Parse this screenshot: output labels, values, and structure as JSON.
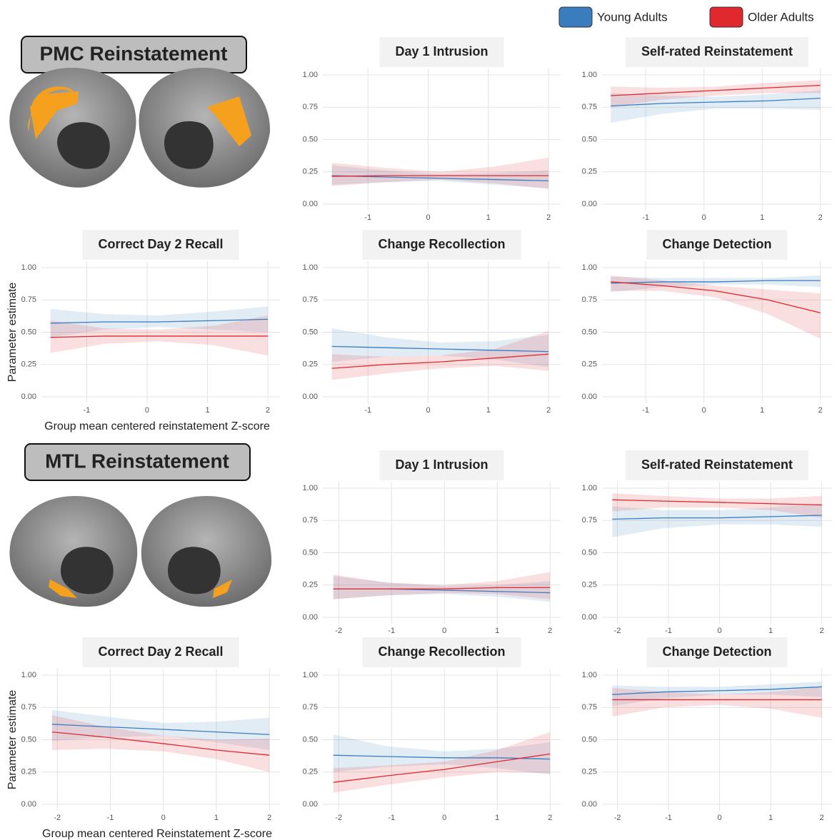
{
  "sections": [
    {
      "title": "PMC Reinstatement"
    },
    {
      "title": "MTL Reinstatement"
    }
  ],
  "chart_data": [
    {
      "type": "line",
      "title": "Day 1 Intrusion",
      "xlim": [
        -1.75,
        2.2
      ],
      "xticks": [
        -1,
        0,
        1,
        2
      ],
      "ylim": [
        -0.05,
        1.05
      ],
      "yticks": [
        {
          "value": 0,
          "label": "0.00"
        },
        {
          "value": 0.25,
          "label": "0.25"
        },
        {
          "value": 0.5,
          "label": "0.50"
        },
        {
          "value": 0.75,
          "label": "0.75"
        },
        {
          "value": 1,
          "label": "1.00"
        }
      ],
      "grid": true,
      "x": [
        -1.6,
        -0.7,
        0.2,
        1.1,
        2.0
      ],
      "series": [
        {
          "name": "Young Adults",
          "color": "#3a7dbf",
          "values": [
            0.22,
            0.21,
            0.2,
            0.19,
            0.18
          ],
          "lower": [
            0.15,
            0.17,
            0.18,
            0.15,
            0.12
          ],
          "upper": [
            0.3,
            0.26,
            0.23,
            0.24,
            0.26
          ]
        },
        {
          "name": "Older Adults",
          "color": "#e0282e",
          "values": [
            0.215,
            0.22,
            0.22,
            0.22,
            0.22
          ],
          "lower": [
            0.14,
            0.17,
            0.19,
            0.16,
            0.12
          ],
          "upper": [
            0.32,
            0.28,
            0.25,
            0.29,
            0.36
          ]
        }
      ]
    },
    {
      "type": "line",
      "title": "Self-rated Reinstatement",
      "xlim": [
        -1.75,
        2.2
      ],
      "xticks": [
        -1,
        0,
        1,
        2
      ],
      "ylim": [
        -0.05,
        1.05
      ],
      "yticks": [
        {
          "value": 0,
          "label": "0.00"
        },
        {
          "value": 0.25,
          "label": "0.25"
        },
        {
          "value": 0.5,
          "label": "0.50"
        },
        {
          "value": 0.75,
          "label": "0.75"
        },
        {
          "value": 1,
          "label": "1.00"
        }
      ],
      "grid": true,
      "x": [
        -1.6,
        -0.7,
        0.2,
        1.1,
        2.0
      ],
      "series": [
        {
          "name": "Young Adults",
          "color": "#3a7dbf",
          "values": [
            0.76,
            0.78,
            0.79,
            0.8,
            0.82
          ],
          "lower": [
            0.63,
            0.7,
            0.74,
            0.74,
            0.73
          ],
          "upper": [
            0.86,
            0.84,
            0.83,
            0.85,
            0.88
          ]
        },
        {
          "name": "Older Adults",
          "color": "#e0282e",
          "values": [
            0.84,
            0.86,
            0.88,
            0.9,
            0.92
          ],
          "lower": [
            0.75,
            0.81,
            0.84,
            0.86,
            0.86
          ],
          "upper": [
            0.91,
            0.9,
            0.91,
            0.94,
            0.96
          ]
        }
      ]
    },
    {
      "type": "line",
      "title": "Correct Day 2 Recall",
      "ylabel": "Parameter estimate",
      "xlabel": "Group mean centered reinstatement Z-score",
      "xlim": [
        -1.75,
        2.2
      ],
      "xticks": [
        -1,
        0,
        1,
        2
      ],
      "ylim": [
        -0.05,
        1.05
      ],
      "yticks": [
        {
          "value": 0,
          "label": "0.00"
        },
        {
          "value": 0.25,
          "label": "0.25"
        },
        {
          "value": 0.5,
          "label": "0.50"
        },
        {
          "value": 0.75,
          "label": "0.75"
        },
        {
          "value": 1,
          "label": "1.00"
        }
      ],
      "grid": true,
      "x": [
        -1.6,
        -0.7,
        0.2,
        1.1,
        2.0
      ],
      "series": [
        {
          "name": "Young Adults",
          "color": "#3a7dbf",
          "values": [
            0.57,
            0.58,
            0.58,
            0.59,
            0.6
          ],
          "lower": [
            0.46,
            0.52,
            0.54,
            0.52,
            0.5
          ],
          "upper": [
            0.68,
            0.64,
            0.63,
            0.66,
            0.7
          ]
        },
        {
          "name": "Older Adults",
          "color": "#e0282e",
          "values": [
            0.46,
            0.47,
            0.47,
            0.47,
            0.47
          ],
          "lower": [
            0.34,
            0.41,
            0.43,
            0.4,
            0.32
          ],
          "upper": [
            0.59,
            0.53,
            0.52,
            0.55,
            0.63
          ]
        }
      ]
    },
    {
      "type": "line",
      "title": "Change Recollection",
      "xlim": [
        -1.75,
        2.2
      ],
      "xticks": [
        -1,
        0,
        1,
        2
      ],
      "ylim": [
        -0.05,
        1.05
      ],
      "yticks": [
        {
          "value": 0,
          "label": "0.00"
        },
        {
          "value": 0.25,
          "label": "0.25"
        },
        {
          "value": 0.5,
          "label": "0.50"
        },
        {
          "value": 0.75,
          "label": "0.75"
        },
        {
          "value": 1,
          "label": "1.00"
        }
      ],
      "grid": true,
      "x": [
        -1.6,
        -0.7,
        0.2,
        1.1,
        2.0
      ],
      "series": [
        {
          "name": "Young Adults",
          "color": "#3a7dbf",
          "values": [
            0.39,
            0.38,
            0.37,
            0.36,
            0.35
          ],
          "lower": [
            0.27,
            0.31,
            0.32,
            0.29,
            0.23
          ],
          "upper": [
            0.53,
            0.46,
            0.42,
            0.43,
            0.48
          ]
        },
        {
          "name": "Older Adults",
          "color": "#e0282e",
          "values": [
            0.22,
            0.25,
            0.27,
            0.3,
            0.33
          ],
          "lower": [
            0.13,
            0.18,
            0.22,
            0.24,
            0.2
          ],
          "upper": [
            0.33,
            0.31,
            0.32,
            0.37,
            0.51
          ]
        }
      ]
    },
    {
      "type": "line",
      "title": "Change Detection",
      "xlim": [
        -1.75,
        2.2
      ],
      "xticks": [
        -1,
        0,
        1,
        2
      ],
      "ylim": [
        -0.05,
        1.05
      ],
      "yticks": [
        {
          "value": 0,
          "label": "0.00"
        },
        {
          "value": 0.25,
          "label": "0.25"
        },
        {
          "value": 0.5,
          "label": "0.50"
        },
        {
          "value": 0.75,
          "label": "0.75"
        },
        {
          "value": 1,
          "label": "1.00"
        }
      ],
      "grid": true,
      "x": [
        -1.6,
        -0.7,
        0.2,
        1.1,
        2.0
      ],
      "series": [
        {
          "name": "Young Adults",
          "color": "#3a7dbf",
          "values": [
            0.88,
            0.89,
            0.89,
            0.9,
            0.9
          ],
          "lower": [
            0.81,
            0.85,
            0.87,
            0.87,
            0.85
          ],
          "upper": [
            0.93,
            0.92,
            0.92,
            0.92,
            0.94
          ]
        },
        {
          "name": "Older Adults",
          "color": "#e0282e",
          "values": [
            0.89,
            0.86,
            0.82,
            0.75,
            0.65
          ],
          "lower": [
            0.82,
            0.82,
            0.77,
            0.64,
            0.45
          ],
          "upper": [
            0.94,
            0.9,
            0.86,
            0.83,
            0.8
          ]
        }
      ]
    },
    {
      "type": "line",
      "title": "Day 1 Intrusion",
      "xlim": [
        -2.3,
        2.2
      ],
      "xticks": [
        -2,
        -1,
        0,
        1,
        2
      ],
      "ylim": [
        -0.05,
        1.05
      ],
      "yticks": [
        {
          "value": 0,
          "label": "0.00"
        },
        {
          "value": 0.25,
          "label": "0.25"
        },
        {
          "value": 0.5,
          "label": "0.50"
        },
        {
          "value": 0.75,
          "label": "0.75"
        },
        {
          "value": 1,
          "label": "1.00"
        }
      ],
      "grid": true,
      "x": [
        -2.1,
        -1.1,
        0,
        1,
        2
      ],
      "series": [
        {
          "name": "Young Adults",
          "color": "#3a7dbf",
          "values": [
            0.22,
            0.22,
            0.21,
            0.2,
            0.19
          ],
          "lower": [
            0.14,
            0.17,
            0.18,
            0.16,
            0.12
          ],
          "upper": [
            0.32,
            0.27,
            0.24,
            0.25,
            0.28
          ]
        },
        {
          "name": "Older Adults",
          "color": "#e0282e",
          "values": [
            0.22,
            0.22,
            0.22,
            0.23,
            0.23
          ],
          "lower": [
            0.14,
            0.17,
            0.19,
            0.18,
            0.14
          ],
          "upper": [
            0.33,
            0.27,
            0.25,
            0.28,
            0.35
          ]
        }
      ]
    },
    {
      "type": "line",
      "title": "Self-rated Reinstatement",
      "xlim": [
        -2.3,
        2.2
      ],
      "xticks": [
        -2,
        -1,
        0,
        1,
        2
      ],
      "ylim": [
        -0.05,
        1.05
      ],
      "yticks": [
        {
          "value": 0,
          "label": "0.00"
        },
        {
          "value": 0.25,
          "label": "0.25"
        },
        {
          "value": 0.5,
          "label": "0.50"
        },
        {
          "value": 0.75,
          "label": "0.75"
        },
        {
          "value": 1,
          "label": "1.00"
        }
      ],
      "grid": true,
      "x": [
        -2.1,
        -1.1,
        0,
        1,
        2
      ],
      "series": [
        {
          "name": "Young Adults",
          "color": "#3a7dbf",
          "values": [
            0.76,
            0.77,
            0.77,
            0.78,
            0.79
          ],
          "lower": [
            0.62,
            0.69,
            0.72,
            0.72,
            0.7
          ],
          "upper": [
            0.86,
            0.83,
            0.83,
            0.85,
            0.88
          ]
        },
        {
          "name": "Older Adults",
          "color": "#e0282e",
          "values": [
            0.91,
            0.9,
            0.89,
            0.88,
            0.87
          ],
          "lower": [
            0.82,
            0.85,
            0.85,
            0.83,
            0.77
          ],
          "upper": [
            0.96,
            0.94,
            0.92,
            0.92,
            0.94
          ]
        }
      ]
    },
    {
      "type": "line",
      "title": "Correct Day 2 Recall",
      "ylabel": "Parameter estimate",
      "xlabel": "Group mean centered Reinstatement Z-score",
      "xlim": [
        -2.3,
        2.2
      ],
      "xticks": [
        -2,
        -1,
        0,
        1,
        2
      ],
      "ylim": [
        -0.05,
        1.05
      ],
      "yticks": [
        {
          "value": 0,
          "label": "0.00"
        },
        {
          "value": 0.25,
          "label": "0.25"
        },
        {
          "value": 0.5,
          "label": "0.50"
        },
        {
          "value": 0.75,
          "label": "0.75"
        },
        {
          "value": 1,
          "label": "1.00"
        }
      ],
      "grid": true,
      "x": [
        -2.1,
        -1.1,
        0,
        1,
        2
      ],
      "series": [
        {
          "name": "Young Adults",
          "color": "#3a7dbf",
          "values": [
            0.62,
            0.6,
            0.58,
            0.56,
            0.54
          ],
          "lower": [
            0.49,
            0.52,
            0.53,
            0.48,
            0.42
          ],
          "upper": [
            0.73,
            0.68,
            0.63,
            0.64,
            0.67
          ]
        },
        {
          "name": "Older Adults",
          "color": "#e0282e",
          "values": [
            0.56,
            0.52,
            0.47,
            0.42,
            0.38
          ],
          "lower": [
            0.42,
            0.43,
            0.41,
            0.35,
            0.25
          ],
          "upper": [
            0.69,
            0.6,
            0.53,
            0.5,
            0.51
          ]
        }
      ]
    },
    {
      "type": "line",
      "title": "Change Recollection",
      "xlim": [
        -2.3,
        2.2
      ],
      "xticks": [
        -2,
        -1,
        0,
        1,
        2
      ],
      "ylim": [
        -0.05,
        1.05
      ],
      "yticks": [
        {
          "value": 0,
          "label": "0.00"
        },
        {
          "value": 0.25,
          "label": "0.25"
        },
        {
          "value": 0.5,
          "label": "0.50"
        },
        {
          "value": 0.75,
          "label": "0.75"
        },
        {
          "value": 1,
          "label": "1.00"
        }
      ],
      "grid": true,
      "x": [
        -2.1,
        -1.1,
        0,
        1,
        2
      ],
      "series": [
        {
          "name": "Young Adults",
          "color": "#3a7dbf",
          "values": [
            0.38,
            0.37,
            0.36,
            0.36,
            0.35
          ],
          "lower": [
            0.25,
            0.29,
            0.31,
            0.28,
            0.23
          ],
          "upper": [
            0.54,
            0.45,
            0.41,
            0.43,
            0.48
          ]
        },
        {
          "name": "Older Adults",
          "color": "#e0282e",
          "values": [
            0.17,
            0.22,
            0.27,
            0.33,
            0.39
          ],
          "lower": [
            0.09,
            0.15,
            0.21,
            0.25,
            0.24
          ],
          "upper": [
            0.28,
            0.3,
            0.33,
            0.42,
            0.56
          ]
        }
      ]
    },
    {
      "type": "line",
      "title": "Change Detection",
      "xlim": [
        -2.3,
        2.2
      ],
      "xticks": [
        -2,
        -1,
        0,
        1,
        2
      ],
      "ylim": [
        -0.05,
        1.05
      ],
      "yticks": [
        {
          "value": 0,
          "label": "0.00"
        },
        {
          "value": 0.25,
          "label": "0.25"
        },
        {
          "value": 0.5,
          "label": "0.50"
        },
        {
          "value": 0.75,
          "label": "0.75"
        },
        {
          "value": 1,
          "label": "1.00"
        }
      ],
      "grid": true,
      "x": [
        -2.1,
        -1.1,
        0,
        1,
        2
      ],
      "series": [
        {
          "name": "Young Adults",
          "color": "#3a7dbf",
          "values": [
            0.85,
            0.87,
            0.88,
            0.89,
            0.91
          ],
          "lower": [
            0.76,
            0.82,
            0.85,
            0.85,
            0.83
          ],
          "upper": [
            0.92,
            0.91,
            0.91,
            0.93,
            0.95
          ]
        },
        {
          "name": "Older Adults",
          "color": "#e0282e",
          "values": [
            0.81,
            0.81,
            0.81,
            0.81,
            0.81
          ],
          "lower": [
            0.68,
            0.75,
            0.77,
            0.74,
            0.67
          ],
          "upper": [
            0.9,
            0.87,
            0.85,
            0.87,
            0.91
          ]
        }
      ]
    }
  ]
}
